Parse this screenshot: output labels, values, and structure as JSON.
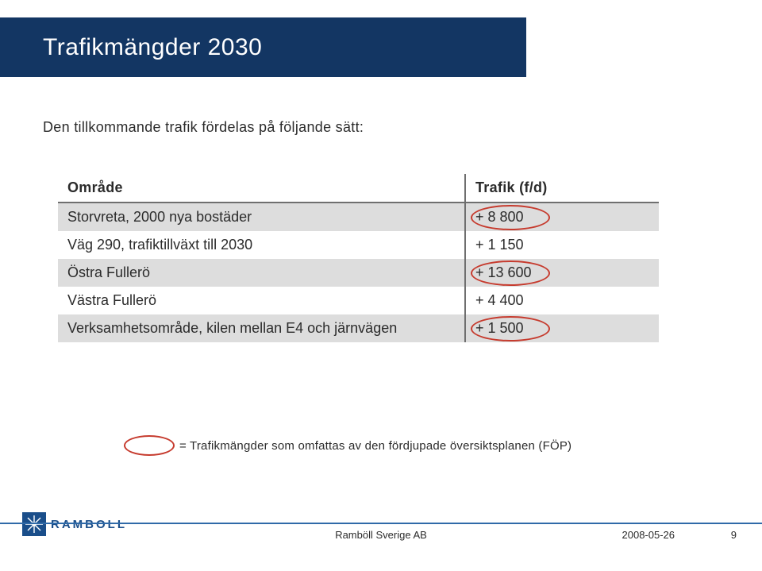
{
  "title": "Trafikmängder 2030",
  "subtitle": "Den tillkommande trafik fördelas på följande sätt:",
  "table": {
    "headers": {
      "area": "Område",
      "value": "Trafik (f/d)"
    },
    "rows": [
      {
        "area": "Storvreta, 2000 nya bostäder",
        "value": "+ 8 800",
        "shaded": true,
        "circled": true
      },
      {
        "area": "Väg 290, trafiktillväxt till 2030",
        "value": "+ 1 150",
        "shaded": false,
        "circled": false
      },
      {
        "area": "Östra Fullerö",
        "value": "+ 13 600",
        "shaded": true,
        "circled": true
      },
      {
        "area": "Västra Fullerö",
        "value": "+ 4 400",
        "shaded": false,
        "circled": false
      },
      {
        "area": "Verksamhetsområde, kilen mellan E4 och järnvägen",
        "value": "+ 1 500",
        "shaded": true,
        "circled": true
      }
    ],
    "oval_color": "#c63b2e",
    "shade_color": "#dddddd",
    "border_color": "#6f6f6f"
  },
  "legend": "= Trafikmängder som omfattas av den fördjupade översiktsplanen (FÖP)",
  "footer": {
    "company": "Ramböll Sverige AB",
    "date": "2008-05-26",
    "page": "9"
  },
  "logo": {
    "text": "RAMBOLL",
    "brand_color": "#1a4e8a"
  }
}
